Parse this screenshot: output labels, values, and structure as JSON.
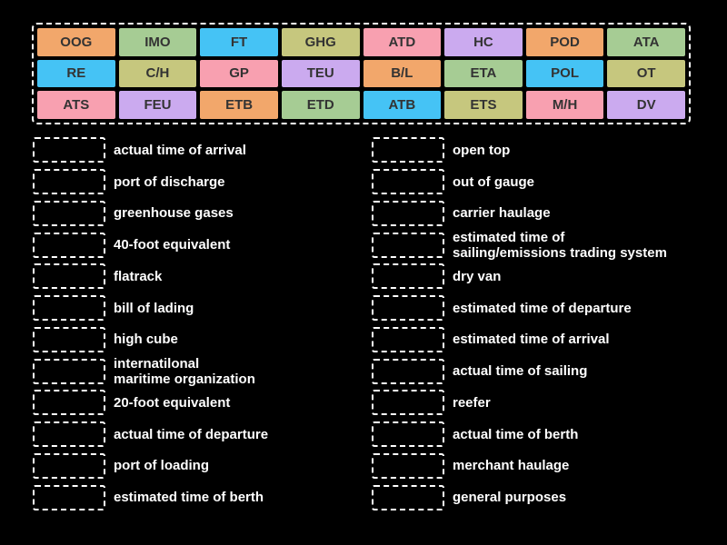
{
  "activity": {
    "type": "match-up",
    "background": "#000000"
  },
  "palette": {
    "orange": "#f2a76b",
    "green": "#a6cc94",
    "blue": "#45c3f5",
    "olive": "#c6c77e",
    "pink": "#f8a0b0",
    "purple": "#cbaaef",
    "tile_text": "#333333",
    "label_text": "#ffffff",
    "dash_border": "#ffffff"
  },
  "tile_bank": {
    "rows": [
      [
        {
          "label": "OOG",
          "color": "orange"
        },
        {
          "label": "IMO",
          "color": "green"
        },
        {
          "label": "FT",
          "color": "blue"
        },
        {
          "label": "GHG",
          "color": "olive"
        },
        {
          "label": "ATD",
          "color": "pink"
        },
        {
          "label": "HC",
          "color": "purple"
        },
        {
          "label": "POD",
          "color": "orange"
        },
        {
          "label": "ATA",
          "color": "green"
        }
      ],
      [
        {
          "label": "RE",
          "color": "blue"
        },
        {
          "label": "C/H",
          "color": "olive"
        },
        {
          "label": "GP",
          "color": "pink"
        },
        {
          "label": "TEU",
          "color": "purple"
        },
        {
          "label": "B/L",
          "color": "orange"
        },
        {
          "label": "ETA",
          "color": "green"
        },
        {
          "label": "POL",
          "color": "blue"
        },
        {
          "label": "OT",
          "color": "olive"
        }
      ],
      [
        {
          "label": "ATS",
          "color": "pink"
        },
        {
          "label": "FEU",
          "color": "purple"
        },
        {
          "label": "ETB",
          "color": "orange"
        },
        {
          "label": "ETD",
          "color": "green"
        },
        {
          "label": "ATB",
          "color": "blue"
        },
        {
          "label": "ETS",
          "color": "olive"
        },
        {
          "label": "M/H",
          "color": "pink"
        },
        {
          "label": "DV",
          "color": "purple"
        }
      ]
    ]
  },
  "match_columns": {
    "left": [
      "actual time of arrival",
      "port of discharge",
      "greenhouse gases",
      "40-foot equivalent",
      "flatrack",
      "bill of lading",
      "high cube",
      "internatilonal\nmaritime organization",
      "20-foot equivalent",
      "actual time of departure",
      "port of loading",
      "estimated time of berth"
    ],
    "right": [
      "open top",
      "out of gauge",
      "carrier haulage",
      "estimated time of\nsailing/emissions trading system",
      "dry van",
      "estimated time of departure",
      "estimated time of arrival",
      "actual time of sailing",
      "reefer",
      "actual time of berth",
      "merchant haulage",
      "general purposes"
    ]
  }
}
